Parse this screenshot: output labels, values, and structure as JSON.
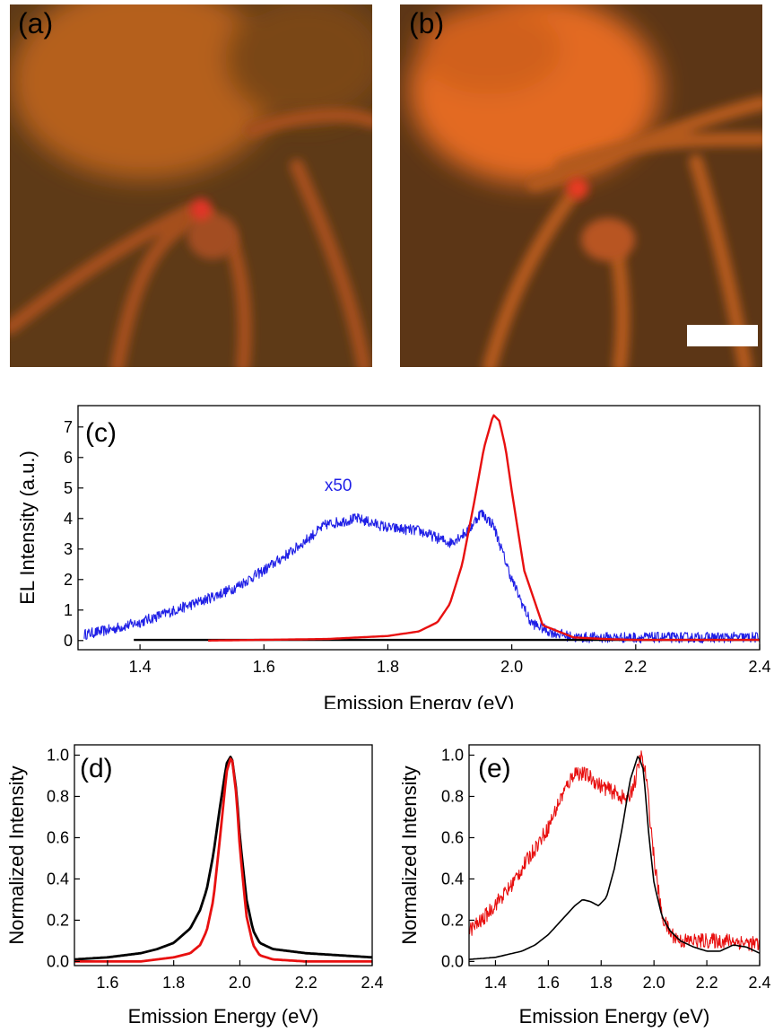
{
  "panels": {
    "a": {
      "label": "(a)"
    },
    "b": {
      "label": "(b)"
    }
  },
  "chart_data": [
    {
      "panel": "(c)",
      "type": "line",
      "xlabel": "Emission Energy (eV)",
      "ylabel": "EL Intensity (a.u.)",
      "xlim": [
        1.3,
        2.4
      ],
      "ylim": [
        -0.3,
        7.7
      ],
      "xticks": [
        1.4,
        1.6,
        1.8,
        2.0,
        2.2,
        2.4
      ],
      "yticks": [
        0,
        1,
        2,
        3,
        4,
        5,
        6,
        7
      ],
      "annotations": [
        {
          "text": "x50",
          "x": 1.72,
          "y": 4.9,
          "color": "#1f1fe6"
        }
      ],
      "series": [
        {
          "color": "#1f1fe6",
          "noisy": true,
          "x": [
            1.31,
            1.35,
            1.4,
            1.45,
            1.5,
            1.55,
            1.6,
            1.65,
            1.7,
            1.75,
            1.8,
            1.85,
            1.9,
            1.93,
            1.95,
            1.97,
            2.0,
            2.03,
            2.06,
            2.1,
            2.15,
            2.2,
            2.3,
            2.4
          ],
          "y": [
            0.2,
            0.35,
            0.6,
            0.95,
            1.3,
            1.7,
            2.3,
            3.0,
            3.8,
            4.0,
            3.7,
            3.6,
            3.2,
            3.6,
            4.2,
            3.8,
            2.0,
            0.6,
            0.3,
            0.1,
            0.1,
            0.1,
            0.1,
            0.1
          ]
        },
        {
          "color": "#000000",
          "noisy": false,
          "x": [
            1.39,
            1.6,
            1.8,
            2.0,
            2.2,
            2.4
          ],
          "y": [
            0.02,
            0.02,
            0.02,
            0.02,
            0.02,
            0.02
          ]
        },
        {
          "color": "#e81010",
          "noisy": false,
          "x": [
            1.51,
            1.7,
            1.8,
            1.85,
            1.88,
            1.9,
            1.92,
            1.94,
            1.955,
            1.97,
            1.98,
            1.99,
            2.0,
            2.02,
            2.05,
            2.1,
            2.15,
            2.2,
            2.4
          ],
          "y": [
            0.0,
            0.05,
            0.15,
            0.3,
            0.6,
            1.2,
            2.5,
            4.6,
            6.3,
            7.4,
            7.2,
            6.3,
            4.9,
            2.3,
            0.5,
            0.1,
            0.05,
            0.02,
            0.02
          ]
        }
      ]
    },
    {
      "panel": "(d)",
      "type": "line",
      "xlabel": "Emission Energy (eV)",
      "ylabel": "Normalized Intensity",
      "xlim": [
        1.5,
        2.4
      ],
      "ylim": [
        -0.02,
        1.05
      ],
      "xticks": [
        1.6,
        1.8,
        2.0,
        2.2,
        2.4
      ],
      "yticks": [
        0.0,
        0.2,
        0.4,
        0.6,
        0.8,
        1.0
      ],
      "series": [
        {
          "color": "#000000",
          "noisy": false,
          "x": [
            1.5,
            1.6,
            1.7,
            1.75,
            1.8,
            1.85,
            1.88,
            1.9,
            1.92,
            1.94,
            1.96,
            1.975,
            1.99,
            2.0,
            2.02,
            2.04,
            2.06,
            2.1,
            2.2,
            2.3,
            2.4
          ],
          "y": [
            0.01,
            0.02,
            0.04,
            0.06,
            0.09,
            0.16,
            0.25,
            0.35,
            0.52,
            0.75,
            0.96,
            1.0,
            0.82,
            0.6,
            0.3,
            0.15,
            0.09,
            0.06,
            0.04,
            0.03,
            0.02
          ]
        },
        {
          "color": "#e81010",
          "noisy": false,
          "x": [
            1.5,
            1.7,
            1.8,
            1.85,
            1.88,
            1.9,
            1.92,
            1.94,
            1.96,
            1.975,
            1.99,
            2.0,
            2.02,
            2.04,
            2.06,
            2.1,
            2.2,
            2.4
          ],
          "y": [
            0.0,
            0.0,
            0.02,
            0.04,
            0.08,
            0.15,
            0.3,
            0.6,
            0.92,
            1.0,
            0.8,
            0.55,
            0.22,
            0.08,
            0.03,
            0.01,
            0.0,
            0.0
          ]
        }
      ]
    },
    {
      "panel": "(e)",
      "type": "line",
      "xlabel": "Emission Energy (eV)",
      "ylabel": "Normalized Intensity",
      "xlim": [
        1.3,
        2.4
      ],
      "ylim": [
        -0.02,
        1.05
      ],
      "xticks": [
        1.4,
        1.6,
        1.8,
        2.0,
        2.2,
        2.4
      ],
      "yticks": [
        0.0,
        0.2,
        0.4,
        0.6,
        0.8,
        1.0
      ],
      "series": [
        {
          "color": "#e81010",
          "noisy": true,
          "x": [
            1.3,
            1.35,
            1.4,
            1.45,
            1.5,
            1.55,
            1.6,
            1.65,
            1.7,
            1.75,
            1.8,
            1.85,
            1.9,
            1.93,
            1.95,
            1.97,
            2.0,
            2.03,
            2.06,
            2.1,
            2.2,
            2.3,
            2.4
          ],
          "y": [
            0.15,
            0.2,
            0.28,
            0.35,
            0.45,
            0.55,
            0.65,
            0.8,
            0.92,
            0.9,
            0.85,
            0.82,
            0.78,
            0.88,
            1.0,
            0.9,
            0.5,
            0.22,
            0.14,
            0.1,
            0.1,
            0.1,
            0.08
          ]
        },
        {
          "color": "#000000",
          "noisy": false,
          "x": [
            1.3,
            1.4,
            1.5,
            1.55,
            1.6,
            1.65,
            1.7,
            1.73,
            1.76,
            1.79,
            1.82,
            1.85,
            1.88,
            1.91,
            1.94,
            1.96,
            1.98,
            2.0,
            2.03,
            2.06,
            2.1,
            2.15,
            2.2,
            2.25,
            2.3,
            2.35,
            2.4
          ],
          "y": [
            0.01,
            0.02,
            0.05,
            0.08,
            0.13,
            0.2,
            0.27,
            0.3,
            0.29,
            0.27,
            0.31,
            0.45,
            0.65,
            0.88,
            1.0,
            0.93,
            0.62,
            0.38,
            0.22,
            0.15,
            0.1,
            0.07,
            0.05,
            0.05,
            0.08,
            0.07,
            0.04
          ]
        }
      ]
    }
  ]
}
